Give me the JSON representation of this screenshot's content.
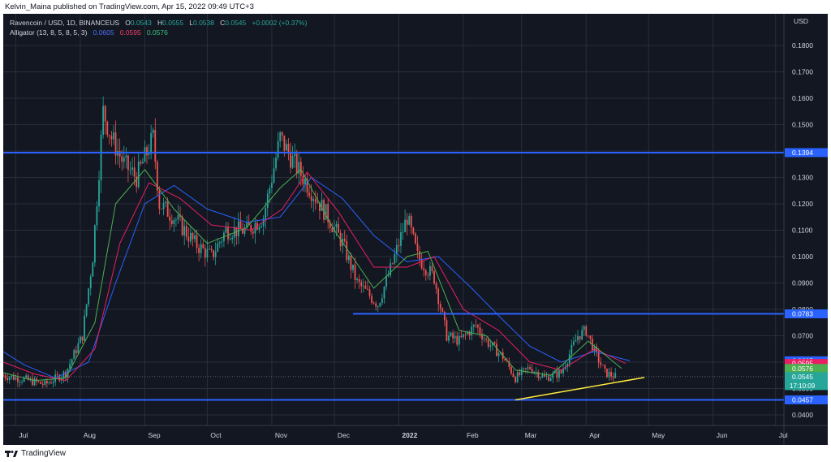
{
  "header": {
    "publisher_line": "Kelvin_Maina published on TradingView.com, Apr 15, 2022 09:49 UTC+3"
  },
  "legend": {
    "symbol": "Ravencoin / USD, 1D, BINANCEUS",
    "ohlc": {
      "o_label": "O",
      "o_value": "0.0543",
      "h_label": "H",
      "h_value": "0.0555",
      "l_label": "L",
      "l_value": "0.0538",
      "c_label": "C",
      "c_value": "0.0545",
      "change": "+0.0002 (+0.37%)"
    },
    "indicator_name": "Alligator (13, 8, 5, 8, 5, 3)",
    "jaw_value": "0.0605",
    "teeth_value": "0.0595",
    "lips_value": "0.0576"
  },
  "footer": {
    "brand": "TradingView"
  },
  "colors": {
    "background": "#131722",
    "grid": "#2a2e39",
    "up": "#26a69a",
    "down": "#ef5350",
    "jaw": "#2962ff",
    "teeth": "#e91e63",
    "lips": "#4caf50",
    "hline": "#2962ff",
    "trendline": "#ffeb3b",
    "axis_text": "#d1d4dc"
  },
  "chart_data": {
    "type": "candlestick",
    "title": "Ravencoin / USD, 1D, BINANCEUS",
    "currency_label": "USD",
    "x_tick_labels": [
      "Jul",
      "Aug",
      "Sep",
      "Oct",
      "Nov",
      "Dec",
      "2022",
      "Feb",
      "Mar",
      "Apr",
      "May",
      "Jun",
      "Jul"
    ],
    "y_tick_labels": [
      "0.0400",
      "0.0500",
      "0.0600",
      "0.0700",
      "0.0800",
      "0.0900",
      "0.1000",
      "0.1100",
      "0.1200",
      "0.1300",
      "0.1400",
      "0.1500",
      "0.1600",
      "0.1700",
      "0.1800"
    ],
    "ylim": [
      0.036,
      0.192
    ],
    "grid": true,
    "horizontal_lines": [
      {
        "value": 0.1394,
        "label": "0.1394",
        "from_date": "2021-06-25",
        "to_date": "2022-07-05"
      },
      {
        "value": 0.0783,
        "label": "0.0783",
        "from_date": "2021-12-10",
        "to_date": "2022-07-05"
      },
      {
        "value": 0.0457,
        "label": "0.0457",
        "from_date": "2021-06-25",
        "to_date": "2022-07-05"
      }
    ],
    "trendline": {
      "start": {
        "date": "2022-02-26",
        "value": 0.0457
      },
      "end": {
        "date": "2022-04-29",
        "value": 0.0542
      }
    },
    "price_labels": [
      {
        "value": 0.0605,
        "label": "0.0605",
        "role": "jaw"
      },
      {
        "value": 0.0595,
        "label": "0.0595",
        "role": "teeth"
      },
      {
        "value": 0.0576,
        "label": "0.0576",
        "role": "lips"
      },
      {
        "value": 0.0545,
        "label": "0.0545",
        "role": "last",
        "countdown": "17:10:09"
      }
    ],
    "series_path_points": [
      {
        "date": "2021-06-25",
        "close": 0.055
      },
      {
        "date": "2021-07-05",
        "close": 0.0535
      },
      {
        "date": "2021-07-15",
        "close": 0.0515
      },
      {
        "date": "2021-07-25",
        "close": 0.056
      },
      {
        "date": "2021-08-02",
        "close": 0.07
      },
      {
        "date": "2021-08-07",
        "close": 0.1
      },
      {
        "date": "2021-08-12",
        "close": 0.155
      },
      {
        "date": "2021-08-16",
        "close": 0.145
      },
      {
        "date": "2021-08-22",
        "close": 0.135
      },
      {
        "date": "2021-08-28",
        "close": 0.13
      },
      {
        "date": "2021-09-05",
        "close": 0.145
      },
      {
        "date": "2021-09-08",
        "close": 0.12
      },
      {
        "date": "2021-09-15",
        "close": 0.115
      },
      {
        "date": "2021-09-25",
        "close": 0.105
      },
      {
        "date": "2021-10-03",
        "close": 0.1
      },
      {
        "date": "2021-10-10",
        "close": 0.11
      },
      {
        "date": "2021-10-20",
        "close": 0.11
      },
      {
        "date": "2021-10-28",
        "close": 0.115
      },
      {
        "date": "2021-11-05",
        "close": 0.145
      },
      {
        "date": "2021-11-12",
        "close": 0.135
      },
      {
        "date": "2021-11-20",
        "close": 0.125
      },
      {
        "date": "2021-11-28",
        "close": 0.115
      },
      {
        "date": "2021-12-05",
        "close": 0.105
      },
      {
        "date": "2021-12-12",
        "close": 0.09
      },
      {
        "date": "2021-12-22",
        "close": 0.082
      },
      {
        "date": "2021-12-28",
        "close": 0.095
      },
      {
        "date": "2022-01-05",
        "close": 0.115
      },
      {
        "date": "2022-01-10",
        "close": 0.1
      },
      {
        "date": "2022-01-18",
        "close": 0.092
      },
      {
        "date": "2022-01-24",
        "close": 0.07
      },
      {
        "date": "2022-01-30",
        "close": 0.068
      },
      {
        "date": "2022-02-07",
        "close": 0.074
      },
      {
        "date": "2022-02-12",
        "close": 0.068
      },
      {
        "date": "2022-02-20",
        "close": 0.062
      },
      {
        "date": "2022-02-26",
        "close": 0.054
      },
      {
        "date": "2022-03-05",
        "close": 0.058
      },
      {
        "date": "2022-03-12",
        "close": 0.054
      },
      {
        "date": "2022-03-20",
        "close": 0.056
      },
      {
        "date": "2022-03-28",
        "close": 0.07
      },
      {
        "date": "2022-04-01",
        "close": 0.072
      },
      {
        "date": "2022-04-05",
        "close": 0.064
      },
      {
        "date": "2022-04-10",
        "close": 0.056
      },
      {
        "date": "2022-04-15",
        "close": 0.0545
      }
    ],
    "jaw_points": [
      {
        "date": "2021-06-25",
        "value": 0.064
      },
      {
        "date": "2021-07-05",
        "value": 0.059
      },
      {
        "date": "2021-07-20",
        "value": 0.054
      },
      {
        "date": "2021-08-05",
        "value": 0.06
      },
      {
        "date": "2021-08-18",
        "value": 0.09
      },
      {
        "date": "2021-09-01",
        "value": 0.12
      },
      {
        "date": "2021-09-15",
        "value": 0.127
      },
      {
        "date": "2021-10-01",
        "value": 0.118
      },
      {
        "date": "2021-10-20",
        "value": 0.113
      },
      {
        "date": "2021-11-05",
        "value": 0.115
      },
      {
        "date": "2021-11-20",
        "value": 0.13
      },
      {
        "date": "2021-12-05",
        "value": 0.122
      },
      {
        "date": "2021-12-20",
        "value": 0.108
      },
      {
        "date": "2022-01-05",
        "value": 0.098
      },
      {
        "date": "2022-01-20",
        "value": 0.1
      },
      {
        "date": "2022-02-05",
        "value": 0.088
      },
      {
        "date": "2022-02-20",
        "value": 0.076
      },
      {
        "date": "2022-03-05",
        "value": 0.066
      },
      {
        "date": "2022-03-20",
        "value": 0.06
      },
      {
        "date": "2022-04-05",
        "value": 0.064
      },
      {
        "date": "2022-04-22",
        "value": 0.0605
      }
    ],
    "teeth_points": [
      {
        "date": "2021-06-25",
        "value": 0.06
      },
      {
        "date": "2021-07-10",
        "value": 0.0555
      },
      {
        "date": "2021-07-25",
        "value": 0.053
      },
      {
        "date": "2021-08-08",
        "value": 0.065
      },
      {
        "date": "2021-08-20",
        "value": 0.105
      },
      {
        "date": "2021-09-03",
        "value": 0.128
      },
      {
        "date": "2021-09-18",
        "value": 0.122
      },
      {
        "date": "2021-10-03",
        "value": 0.112
      },
      {
        "date": "2021-10-22",
        "value": 0.11
      },
      {
        "date": "2021-11-06",
        "value": 0.118
      },
      {
        "date": "2021-11-18",
        "value": 0.132
      },
      {
        "date": "2021-12-03",
        "value": 0.117
      },
      {
        "date": "2021-12-20",
        "value": 0.096
      },
      {
        "date": "2022-01-05",
        "value": 0.096
      },
      {
        "date": "2022-01-18",
        "value": 0.1
      },
      {
        "date": "2022-02-01",
        "value": 0.08
      },
      {
        "date": "2022-02-18",
        "value": 0.072
      },
      {
        "date": "2022-03-05",
        "value": 0.06
      },
      {
        "date": "2022-03-20",
        "value": 0.057
      },
      {
        "date": "2022-04-05",
        "value": 0.065
      },
      {
        "date": "2022-04-20",
        "value": 0.0595
      }
    ],
    "lips_points": [
      {
        "date": "2021-06-25",
        "value": 0.056
      },
      {
        "date": "2021-07-10",
        "value": 0.053
      },
      {
        "date": "2021-07-25",
        "value": 0.054
      },
      {
        "date": "2021-08-08",
        "value": 0.075
      },
      {
        "date": "2021-08-18",
        "value": 0.12
      },
      {
        "date": "2021-09-01",
        "value": 0.133
      },
      {
        "date": "2021-09-15",
        "value": 0.118
      },
      {
        "date": "2021-10-01",
        "value": 0.105
      },
      {
        "date": "2021-10-20",
        "value": 0.111
      },
      {
        "date": "2021-11-05",
        "value": 0.126
      },
      {
        "date": "2021-11-15",
        "value": 0.133
      },
      {
        "date": "2021-12-01",
        "value": 0.11
      },
      {
        "date": "2021-12-20",
        "value": 0.088
      },
      {
        "date": "2022-01-05",
        "value": 0.1
      },
      {
        "date": "2022-01-15",
        "value": 0.102
      },
      {
        "date": "2022-01-30",
        "value": 0.072
      },
      {
        "date": "2022-02-12",
        "value": 0.07
      },
      {
        "date": "2022-02-26",
        "value": 0.057
      },
      {
        "date": "2022-03-15",
        "value": 0.055
      },
      {
        "date": "2022-04-02",
        "value": 0.068
      },
      {
        "date": "2022-04-18",
        "value": 0.0576
      }
    ]
  }
}
